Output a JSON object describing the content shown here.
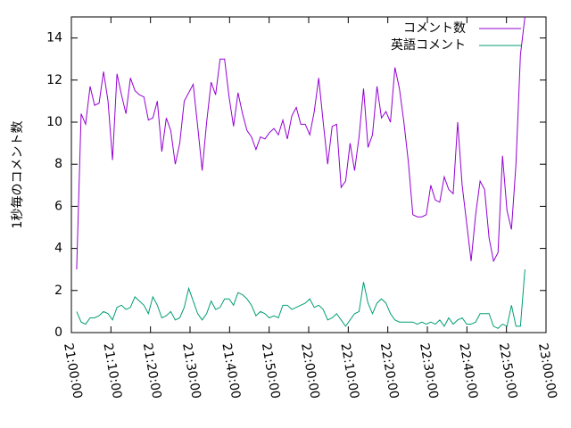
{
  "chart_data": {
    "type": "line",
    "ylabel": "1秒毎のコメント数",
    "xlim": [
      "21:00:00",
      "23:00:00"
    ],
    "xticks": [
      "21:00:00",
      "21:10:00",
      "21:20:00",
      "21:30:00",
      "21:40:00",
      "21:50:00",
      "22:00:00",
      "22:10:00",
      "22:20:00",
      "22:30:00",
      "22:40:00",
      "22:50:00",
      "23:00:00"
    ],
    "ylim": [
      0,
      15
    ],
    "yticks": [
      0,
      2,
      4,
      6,
      8,
      10,
      12,
      14
    ],
    "legend": "top-right",
    "x": [
      "21:01:20",
      "21:02:28",
      "21:03:36",
      "21:04:44",
      "21:05:52",
      "21:07:00",
      "21:08:08",
      "21:09:16",
      "21:10:24",
      "21:11:32",
      "21:12:40",
      "21:13:48",
      "21:14:56",
      "21:16:04",
      "21:17:12",
      "21:18:20",
      "21:19:28",
      "21:20:36",
      "21:21:44",
      "21:22:52",
      "21:24:00",
      "21:25:08",
      "21:26:16",
      "21:27:24",
      "21:28:32",
      "21:29:40",
      "21:30:48",
      "21:31:56",
      "21:33:04",
      "21:34:12",
      "21:35:20",
      "21:36:28",
      "21:37:36",
      "21:38:44",
      "21:39:52",
      "21:41:00",
      "21:42:08",
      "21:43:16",
      "21:44:24",
      "21:45:32",
      "21:46:40",
      "21:47:48",
      "21:48:56",
      "21:50:04",
      "21:51:12",
      "21:52:20",
      "21:53:28",
      "21:54:36",
      "21:55:44",
      "21:56:52",
      "21:58:00",
      "21:59:08",
      "22:00:16",
      "22:01:24",
      "22:02:32",
      "22:03:40",
      "22:04:48",
      "22:05:56",
      "22:07:04",
      "22:08:12",
      "22:09:20",
      "22:10:28",
      "22:11:36",
      "22:12:44",
      "22:13:52",
      "22:15:00",
      "22:16:08",
      "22:17:16",
      "22:18:24",
      "22:19:32",
      "22:20:40",
      "22:21:48",
      "22:22:56",
      "22:24:04",
      "22:25:12",
      "22:26:20",
      "22:27:28",
      "22:28:36",
      "22:29:44",
      "22:30:52",
      "22:32:00",
      "22:33:08",
      "22:34:16",
      "22:35:24",
      "22:36:32",
      "22:37:40",
      "22:38:48",
      "22:39:56",
      "22:41:04",
      "22:42:12",
      "22:43:20",
      "22:44:28",
      "22:45:36",
      "22:46:44",
      "22:47:52",
      "22:49:00",
      "22:50:08",
      "22:51:16",
      "22:52:24",
      "22:53:32",
      "22:54:40"
    ],
    "series": [
      {
        "name": "コメント数",
        "color": "#9400d3",
        "values": [
          3.0,
          10.4,
          9.9,
          11.7,
          10.8,
          10.9,
          12.4,
          11.0,
          8.2,
          12.3,
          11.3,
          10.4,
          12.1,
          11.5,
          11.3,
          11.2,
          10.1,
          10.2,
          11.0,
          8.6,
          10.2,
          9.6,
          8.0,
          9.0,
          11.0,
          11.4,
          11.8,
          9.8,
          7.7,
          10.0,
          11.9,
          11.3,
          13.0,
          13.0,
          11.2,
          9.8,
          11.4,
          10.4,
          9.6,
          9.3,
          8.7,
          9.3,
          9.2,
          9.5,
          9.7,
          9.4,
          10.1,
          9.2,
          10.3,
          10.7,
          9.9,
          9.9,
          9.4,
          10.5,
          12.1,
          10.0,
          8.0,
          9.8,
          9.9,
          6.9,
          7.2,
          9.0,
          7.7,
          9.3,
          11.6,
          8.8,
          9.4,
          11.7,
          10.2,
          10.5,
          10.0,
          12.6,
          11.6,
          10.0,
          8.1,
          5.6,
          5.5,
          5.5,
          5.6,
          7.0,
          6.3,
          6.2,
          7.4,
          6.8,
          6.6,
          10.0,
          7.0,
          5.2,
          3.4,
          5.6,
          7.2,
          6.8,
          4.5,
          3.4,
          3.8,
          8.4,
          5.8,
          4.9,
          8.0,
          13.2,
          15.0
        ]
      },
      {
        "name": "英語コメント",
        "color": "#009e73",
        "values": [
          1.0,
          0.5,
          0.4,
          0.7,
          0.7,
          0.8,
          1.0,
          0.9,
          0.6,
          1.2,
          1.3,
          1.1,
          1.2,
          1.7,
          1.5,
          1.3,
          0.9,
          1.7,
          1.3,
          0.7,
          0.8,
          1.0,
          0.6,
          0.7,
          1.2,
          2.1,
          1.5,
          0.9,
          0.6,
          0.9,
          1.5,
          1.1,
          1.2,
          1.6,
          1.6,
          1.3,
          1.9,
          1.8,
          1.6,
          1.3,
          0.8,
          1.0,
          0.9,
          0.7,
          0.8,
          0.7,
          1.3,
          1.3,
          1.1,
          1.2,
          1.3,
          1.4,
          1.6,
          1.2,
          1.3,
          1.1,
          0.6,
          0.7,
          0.9,
          0.6,
          0.3,
          0.6,
          0.9,
          1.0,
          2.4,
          1.4,
          0.9,
          1.4,
          1.6,
          1.4,
          0.9,
          0.6,
          0.5,
          0.5,
          0.5,
          0.5,
          0.4,
          0.5,
          0.4,
          0.5,
          0.4,
          0.6,
          0.3,
          0.7,
          0.4,
          0.6,
          0.7,
          0.4,
          0.4,
          0.5,
          0.9,
          0.9,
          0.9,
          0.3,
          0.2,
          0.4,
          0.3,
          1.3,
          0.3,
          0.3,
          3.0
        ]
      }
    ]
  }
}
